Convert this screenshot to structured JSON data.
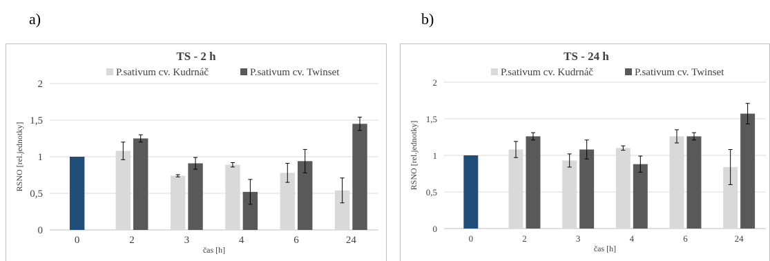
{
  "panel_labels": [
    "a)",
    "b)"
  ],
  "colors": {
    "baseline": "#1f4e79",
    "kudrnac": "#d9d9d9",
    "twinset": "#595959",
    "grid": "#d9d9d9",
    "border": "#bfbfbf"
  },
  "chart_data": [
    {
      "type": "bar",
      "title": "TS - 2 h",
      "xlabel": "čas [h]",
      "ylabel": "RSNO [rel.jednotky]",
      "ylim": [
        0,
        2
      ],
      "yticks": [
        "0",
        "0,5",
        "1",
        "1,5",
        "2"
      ],
      "categories": [
        "0",
        "2",
        "3",
        "4",
        "6",
        "24"
      ],
      "legend_position": "top",
      "grid": true,
      "baseline": {
        "category": "0",
        "value": 1.0
      },
      "series": [
        {
          "name": "P.sativum cv. Kudrnáč",
          "values": [
            null,
            1.08,
            0.74,
            0.89,
            0.78,
            0.54
          ],
          "errors": [
            null,
            0.12,
            0.015,
            0.03,
            0.13,
            0.17
          ]
        },
        {
          "name": "P.sativum cv. Twinset",
          "values": [
            null,
            1.25,
            0.91,
            0.52,
            0.94,
            1.45
          ],
          "errors": [
            null,
            0.05,
            0.08,
            0.17,
            0.16,
            0.09
          ]
        }
      ]
    },
    {
      "type": "bar",
      "title": "TS - 24 h",
      "xlabel": "čas [h]",
      "ylabel": "RSNO [rel.jednotky]",
      "ylim": [
        0,
        2
      ],
      "yticks": [
        "0",
        "0,5",
        "1",
        "1,5",
        "2"
      ],
      "categories": [
        "0",
        "2",
        "3",
        "4",
        "6",
        "24"
      ],
      "legend_position": "top",
      "grid": true,
      "baseline": {
        "category": "0",
        "value": 1.0
      },
      "series": [
        {
          "name": "P.sativum cv. Kudrnáč",
          "values": [
            null,
            1.08,
            0.93,
            1.1,
            1.26,
            0.84
          ],
          "errors": [
            null,
            0.11,
            0.09,
            0.03,
            0.09,
            0.24
          ]
        },
        {
          "name": "P.sativum cv. Twinset",
          "values": [
            null,
            1.26,
            1.08,
            0.88,
            1.26,
            1.57
          ],
          "errors": [
            null,
            0.05,
            0.13,
            0.11,
            0.05,
            0.14
          ]
        }
      ]
    }
  ]
}
